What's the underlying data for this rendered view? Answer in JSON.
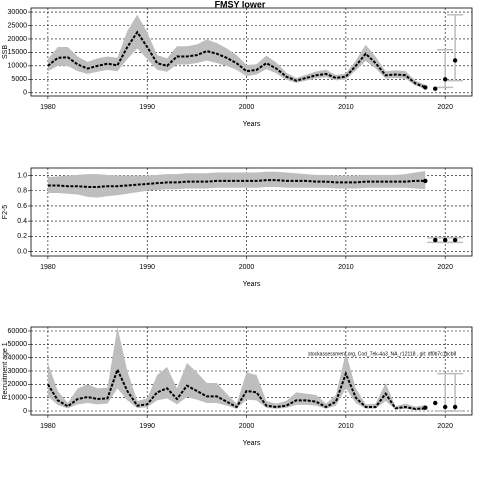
{
  "chart_data": [
    {
      "type": "line",
      "title": "FMSY lower",
      "xlabel": "Years",
      "ylabel": "SSB",
      "xlim": [
        1978.3,
        2022.7
      ],
      "xticks": [
        1980,
        1990,
        2000,
        2010,
        2020
      ],
      "ylim": [
        -1200,
        31500
      ],
      "yticks": [
        0,
        5000,
        10000,
        15000,
        20000,
        25000,
        30000
      ],
      "grid": true,
      "line_color": "#000000",
      "band_color": "#bebebe",
      "x": [
        1980,
        1981,
        1982,
        1983,
        1984,
        1985,
        1986,
        1987,
        1988,
        1989,
        1990,
        1991,
        1992,
        1993,
        1994,
        1995,
        1996,
        1997,
        1998,
        1999,
        2000,
        2001,
        2002,
        2003,
        2004,
        2005,
        2006,
        2007,
        2008,
        2009,
        2010,
        2011,
        2012,
        2013,
        2014,
        2015,
        2016,
        2017,
        2018
      ],
      "values": [
        10000,
        13000,
        13200,
        10500,
        9000,
        10000,
        10800,
        10200,
        17000,
        22500,
        17000,
        11000,
        10000,
        13500,
        13500,
        14000,
        15500,
        14500,
        13000,
        11000,
        8000,
        8500,
        11000,
        9000,
        6000,
        4500,
        5500,
        6500,
        7000,
        5500,
        6000,
        10000,
        14500,
        11000,
        6500,
        6800,
        6500,
        3500,
        2000
      ],
      "low": [
        8000,
        10000,
        10000,
        8000,
        7000,
        7800,
        8500,
        8000,
        12500,
        16500,
        12500,
        8500,
        7800,
        10500,
        10500,
        11000,
        12000,
        11000,
        10000,
        8500,
        6200,
        6800,
        8800,
        7200,
        4800,
        3700,
        4500,
        5400,
        5800,
        4600,
        5000,
        8300,
        11800,
        9000,
        5300,
        5500,
        5200,
        2700,
        1300
      ],
      "high": [
        12500,
        17000,
        17000,
        13500,
        11500,
        12800,
        13500,
        13000,
        23000,
        29000,
        22500,
        14000,
        12800,
        17300,
        17300,
        18000,
        19800,
        18500,
        16500,
        14000,
        10300,
        10600,
        13800,
        11200,
        7500,
        5500,
        6700,
        7900,
        8500,
        6600,
        7200,
        12000,
        17800,
        13400,
        8000,
        8300,
        8100,
        4500,
        3000
      ],
      "forecast_x": [
        2018,
        2019,
        2020,
        2021
      ],
      "forecast_values": [
        2000,
        1500,
        5000,
        12000
      ],
      "forecast_low": [
        null,
        null,
        2000,
        4500
      ],
      "forecast_high": [
        null,
        null,
        16000,
        29000
      ]
    },
    {
      "type": "line",
      "xlabel": "Years",
      "ylabel": "F2-5",
      "xlim": [
        1978.3,
        2022.7
      ],
      "xticks": [
        1980,
        1990,
        2000,
        2010,
        2020
      ],
      "ylim": [
        -0.06,
        1.1
      ],
      "yticks": [
        {
          "value": 0,
          "label": "0.0"
        },
        {
          "value": 0.2,
          "label": "0.2"
        },
        {
          "value": 0.4,
          "label": "0.4"
        },
        {
          "value": 0.6,
          "label": "0.6"
        },
        {
          "value": 0.8,
          "label": "0.8"
        },
        {
          "value": 1,
          "label": "1.0"
        }
      ],
      "grid": true,
      "line_color": "#000000",
      "band_color": "#bebebe",
      "x": [
        1980,
        1981,
        1982,
        1983,
        1984,
        1985,
        1986,
        1987,
        1988,
        1989,
        1990,
        1991,
        1992,
        1993,
        1994,
        1995,
        1996,
        1997,
        1998,
        1999,
        2000,
        2001,
        2002,
        2003,
        2004,
        2005,
        2006,
        2007,
        2008,
        2009,
        2010,
        2011,
        2012,
        2013,
        2014,
        2015,
        2016,
        2017,
        2018
      ],
      "values": [
        0.87,
        0.87,
        0.86,
        0.86,
        0.85,
        0.85,
        0.86,
        0.86,
        0.87,
        0.88,
        0.89,
        0.9,
        0.91,
        0.91,
        0.92,
        0.92,
        0.92,
        0.93,
        0.93,
        0.93,
        0.93,
        0.93,
        0.94,
        0.94,
        0.93,
        0.93,
        0.93,
        0.92,
        0.92,
        0.91,
        0.91,
        0.91,
        0.92,
        0.92,
        0.92,
        0.92,
        0.92,
        0.93,
        0.93
      ],
      "low": [
        0.77,
        0.77,
        0.76,
        0.75,
        0.72,
        0.71,
        0.73,
        0.74,
        0.76,
        0.78,
        0.8,
        0.81,
        0.82,
        0.82,
        0.83,
        0.83,
        0.83,
        0.84,
        0.84,
        0.84,
        0.84,
        0.84,
        0.85,
        0.85,
        0.84,
        0.84,
        0.84,
        0.84,
        0.84,
        0.83,
        0.83,
        0.83,
        0.84,
        0.84,
        0.84,
        0.84,
        0.84,
        0.83,
        0.82
      ],
      "high": [
        0.98,
        0.99,
        1.0,
        1.01,
        1.02,
        1.02,
        1.01,
        1.0,
        1.0,
        1.0,
        1.0,
        1.01,
        1.02,
        1.02,
        1.03,
        1.03,
        1.03,
        1.04,
        1.04,
        1.04,
        1.04,
        1.04,
        1.05,
        1.05,
        1.04,
        1.03,
        1.02,
        1.01,
        1.01,
        1.0,
        1.0,
        1.0,
        1.01,
        1.01,
        1.01,
        1.01,
        1.02,
        1.04,
        1.06
      ],
      "forecast_x": [
        2018,
        2019,
        2020,
        2021
      ],
      "forecast_values": [
        0.93,
        0.15,
        0.15,
        0.15
      ],
      "forecast_low": [
        null,
        0.12,
        0.12,
        0.12
      ],
      "forecast_high": [
        null,
        0.18,
        0.18,
        0.18
      ]
    },
    {
      "type": "line",
      "xlabel": "Years",
      "ylabel": "Recruitment age 1",
      "annotation": "stockassessment.org, Cod_7ek-4a3_NA_r12118 , git: df0b7c1bcb8",
      "xlim": [
        1978.3,
        2022.7
      ],
      "xticks": [
        1980,
        1990,
        2000,
        2010,
        2020
      ],
      "ylim": [
        -3000,
        63000
      ],
      "yticks": [
        0,
        10000,
        20000,
        30000,
        40000,
        50000,
        60000
      ],
      "grid": true,
      "line_color": "#000000",
      "band_color": "#bebebe",
      "x": [
        1980,
        1981,
        1982,
        1983,
        1984,
        1985,
        1986,
        1987,
        1988,
        1989,
        1990,
        1991,
        1992,
        1993,
        1994,
        1995,
        1996,
        1997,
        1998,
        1999,
        2000,
        2001,
        2002,
        2003,
        2004,
        2005,
        2006,
        2007,
        2008,
        2009,
        2010,
        2011,
        2012,
        2013,
        2014,
        2015,
        2016,
        2017,
        2018
      ],
      "values": [
        20000,
        8000,
        3500,
        9000,
        10500,
        9000,
        9500,
        31000,
        15000,
        4000,
        5000,
        14000,
        17000,
        9000,
        19000,
        15000,
        11000,
        11000,
        7000,
        3000,
        15000,
        14000,
        4000,
        3000,
        4000,
        8000,
        8000,
        7000,
        3000,
        7000,
        28000,
        10000,
        3000,
        3000,
        13000,
        2000,
        3000,
        1500,
        2000
      ],
      "low": [
        11000,
        4500,
        2000,
        5000,
        6000,
        5000,
        5500,
        17000,
        8000,
        2200,
        2800,
        8000,
        9500,
        5000,
        10500,
        8500,
        6000,
        6000,
        4000,
        1700,
        8500,
        8000,
        2300,
        1700,
        2300,
        4600,
        4600,
        4000,
        1700,
        4000,
        17000,
        6000,
        1800,
        1700,
        7500,
        1100,
        1600,
        700,
        800
      ],
      "high": [
        36000,
        15000,
        6000,
        17000,
        20000,
        17000,
        17500,
        63000,
        30000,
        7500,
        9500,
        27000,
        33000,
        17000,
        36000,
        29000,
        21000,
        21000,
        13000,
        5500,
        29000,
        27000,
        7500,
        5500,
        7500,
        14000,
        13000,
        12000,
        5500,
        12000,
        44000,
        17000,
        5000,
        5500,
        21000,
        3500,
        5500,
        3200,
        4500
      ],
      "forecast_x": [
        2018,
        2019,
        2020,
        2021
      ],
      "forecast_values": [
        2500,
        6000,
        3000,
        3000
      ],
      "forecast_low": [
        null,
        null,
        0,
        0
      ],
      "forecast_high": [
        null,
        null,
        28000,
        28000
      ]
    }
  ]
}
